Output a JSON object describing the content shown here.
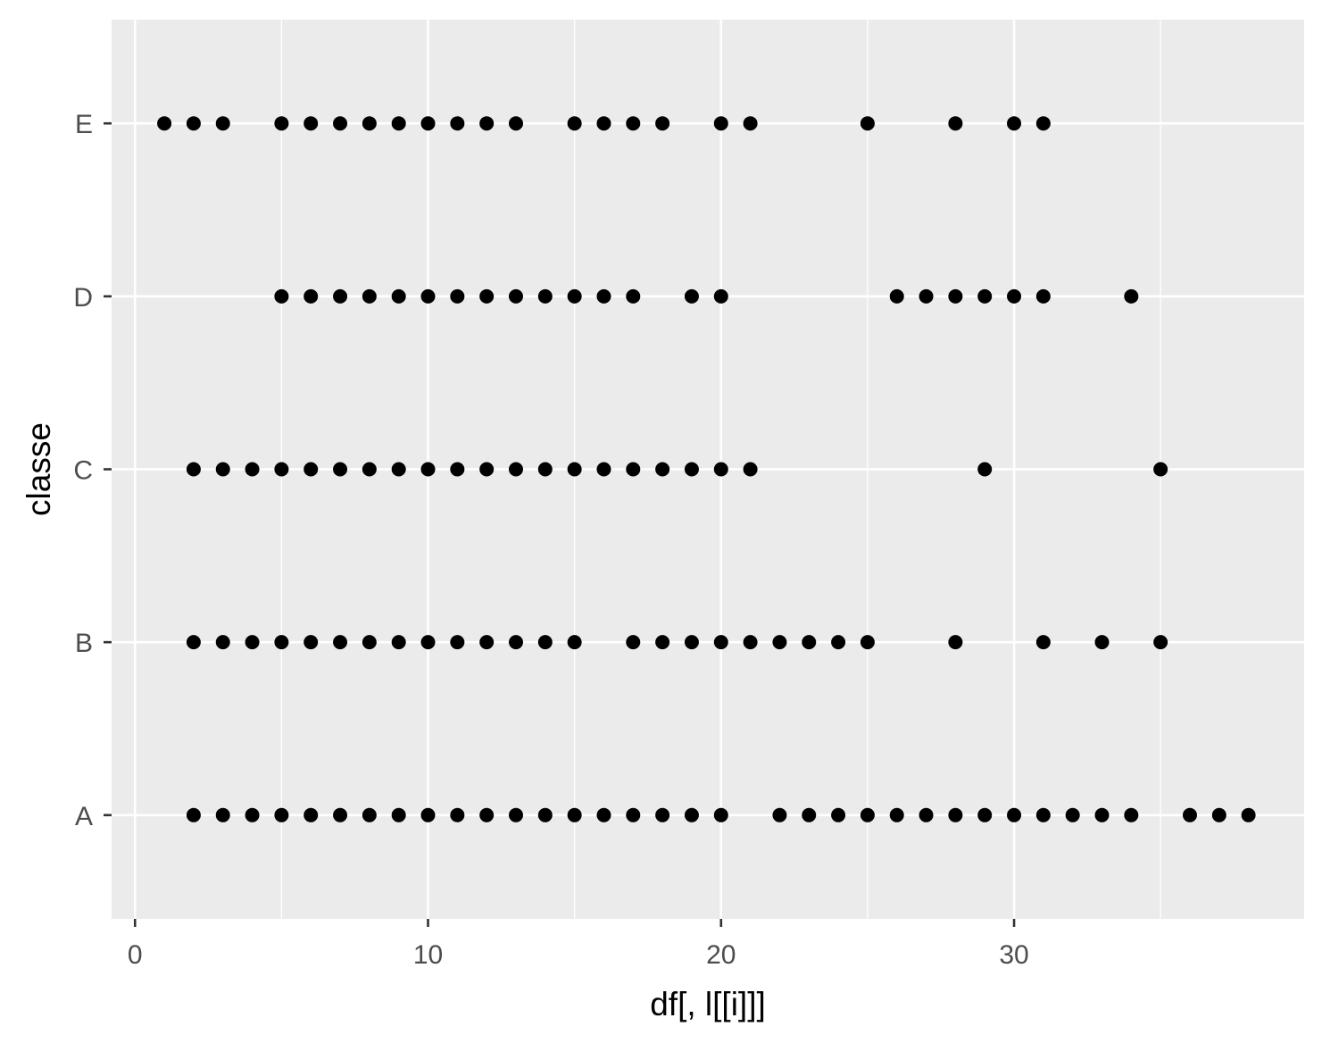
{
  "chart_data": {
    "type": "scatter",
    "xlabel": "df[, l[[i]]]",
    "ylabel": "classe",
    "xlim": [
      -0.8,
      39.9
    ],
    "x_ticks": [
      0,
      10,
      20,
      30
    ],
    "categories": [
      "A",
      "B",
      "C",
      "D",
      "E"
    ],
    "grid": true,
    "background_color": "#ebebeb",
    "grid_color": "#ffffff",
    "point_color": "#000000",
    "series": [
      {
        "category": "A",
        "x": [
          2,
          3,
          4,
          5,
          6,
          7,
          8,
          9,
          10,
          11,
          12,
          13,
          14,
          15,
          16,
          17,
          18,
          19,
          20,
          22,
          23,
          24,
          25,
          26,
          27,
          28,
          29,
          30,
          31,
          32,
          33,
          34,
          36,
          37,
          38
        ]
      },
      {
        "category": "B",
        "x": [
          2,
          3,
          4,
          5,
          6,
          7,
          8,
          9,
          10,
          11,
          12,
          13,
          14,
          15,
          17,
          18,
          19,
          20,
          21,
          22,
          23,
          24,
          25,
          28,
          31,
          33,
          35
        ]
      },
      {
        "category": "C",
        "x": [
          2,
          3,
          4,
          5,
          6,
          7,
          8,
          9,
          10,
          11,
          12,
          13,
          14,
          15,
          16,
          17,
          18,
          19,
          20,
          21,
          29,
          35
        ]
      },
      {
        "category": "D",
        "x": [
          5,
          6,
          7,
          8,
          9,
          10,
          11,
          12,
          13,
          14,
          15,
          16,
          17,
          19,
          20,
          26,
          27,
          28,
          29,
          30,
          31,
          34
        ]
      },
      {
        "category": "E",
        "x": [
          1,
          2,
          3,
          5,
          6,
          7,
          8,
          9,
          10,
          11,
          12,
          13,
          15,
          16,
          17,
          18,
          20,
          21,
          25,
          28,
          30,
          31
        ]
      }
    ]
  }
}
